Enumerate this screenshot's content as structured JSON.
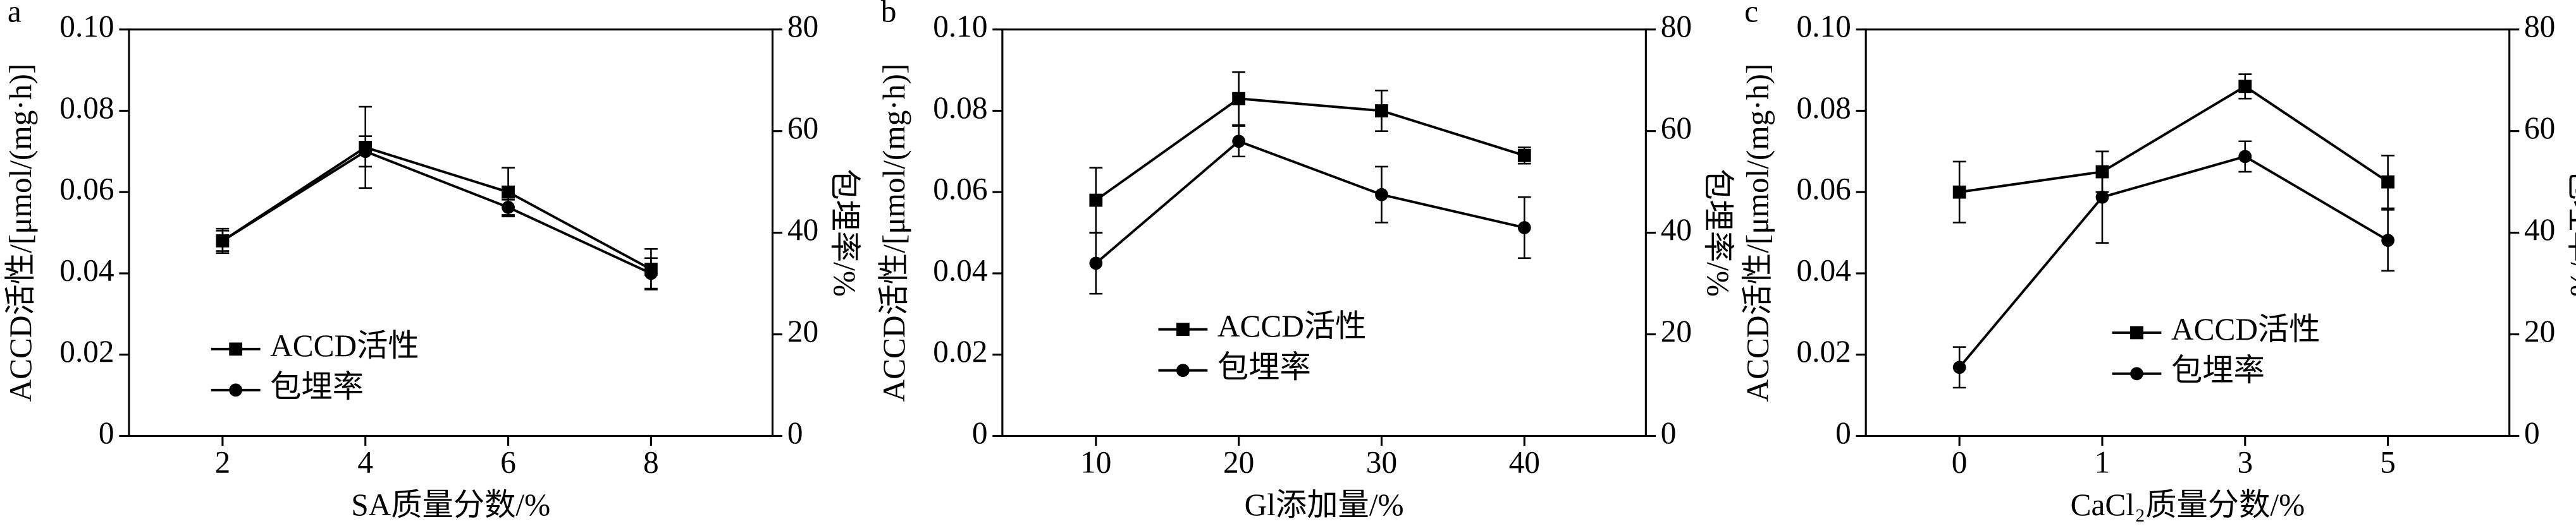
{
  "chart_data": [
    {
      "type": "line",
      "panel_label": "a",
      "x_label": "SA质量分数/%",
      "y_label": "ACCD活性/[μmol/(mg·h)]",
      "y2_label": "包埋率/%",
      "categories": [
        "2",
        "4",
        "6",
        "8"
      ],
      "series": [
        {
          "name": "ACCD活性",
          "color": "#000000",
          "marker": "square",
          "values": [
            0.048,
            0.071,
            0.06,
            0.041
          ],
          "errors": [
            0.003,
            0.01,
            0.006,
            0.005
          ]
        },
        {
          "name": "包埋率",
          "color": "#000000",
          "marker": "circle",
          "axis": "y2",
          "values": [
            38.4,
            56,
            45,
            32
          ],
          "errors": [
            2,
            3,
            1.5,
            3
          ]
        }
      ],
      "ylim": [
        0,
        0.1
      ],
      "yticks": [
        0,
        0.02,
        0.04,
        0.06,
        0.08,
        {
          "value": 0.1,
          "label": "0.10"
        }
      ],
      "y2lim": [
        0,
        80
      ],
      "y2ticks": [
        0,
        20,
        40,
        60,
        80
      ],
      "legend_loc": "lower left"
    },
    {
      "type": "line",
      "panel_label": "b",
      "x_label": "Gl添加量/%",
      "y_label": "ACCD活性/[μmol/(mg·h)]",
      "y2_label": "包埋率/%",
      "categories": [
        "10",
        "20",
        "30",
        "40"
      ],
      "series": [
        {
          "name": "ACCD活性",
          "color": "#000000",
          "marker": "square",
          "values": [
            0.058,
            0.083,
            0.08,
            0.069
          ],
          "errors": [
            0.008,
            0.0065,
            0.005,
            0.002
          ]
        },
        {
          "name": "包埋率",
          "color": "#000000",
          "marker": "circle",
          "axis": "y2",
          "values": [
            34,
            58,
            47.5,
            41
          ],
          "errors": [
            6,
            3,
            5.5,
            6
          ]
        }
      ],
      "ylim": [
        0,
        0.1
      ],
      "yticks": [
        0,
        0.02,
        0.04,
        0.06,
        0.08,
        {
          "value": 0.1,
          "label": "0.10"
        }
      ],
      "y2lim": [
        0,
        80
      ],
      "y2ticks": [
        0,
        20,
        40,
        60,
        80
      ],
      "legend_loc": "lower center"
    },
    {
      "type": "line",
      "panel_label": "c",
      "x_label": "CaCl₂质量分数/%",
      "y_label": "ACCD活性/[μmol/(mg·h)]",
      "y2_label": "包埋率/%",
      "categories": [
        "0",
        "1",
        "3",
        "5"
      ],
      "series": [
        {
          "name": "ACCD活性",
          "color": "#000000",
          "marker": "square",
          "values": [
            0.06,
            0.065,
            0.086,
            0.0625
          ],
          "errors": [
            0.0075,
            0.005,
            0.003,
            0.0065
          ]
        },
        {
          "name": "包埋率",
          "color": "#000000",
          "marker": "circle",
          "axis": "y2",
          "values": [
            13.5,
            47,
            55,
            38.5
          ],
          "errors": [
            4,
            9,
            3,
            6
          ]
        }
      ],
      "ylim": [
        0,
        0.1
      ],
      "yticks": [
        0,
        0.02,
        0.04,
        0.06,
        0.08,
        {
          "value": 0.1,
          "label": "0.10"
        }
      ],
      "y2lim": [
        0,
        80
      ],
      "y2ticks": [
        0,
        20,
        40,
        60,
        80
      ],
      "legend_loc": "lower right"
    }
  ]
}
